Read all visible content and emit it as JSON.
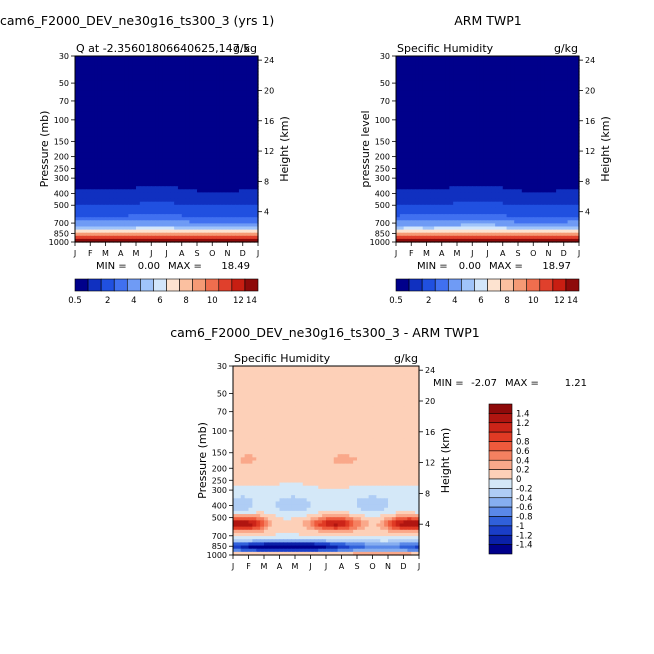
{
  "chart_data": [
    {
      "type": "heatmap",
      "title": "cam6_F2000_DEV_ne30g16_ts300_3 (yrs 1)",
      "subtitle_left": "Q at -2.35601806640625,147.5",
      "subtitle_right": "g/kg",
      "ylabel": "Pressure (mb)",
      "ylabel_right": "Height (km)",
      "months": [
        "J",
        "F",
        "M",
        "A",
        "M",
        "J",
        "J",
        "A",
        "S",
        "O",
        "N",
        "D",
        "J"
      ],
      "pressure_ticks": [
        "30",
        "50",
        "70",
        "100",
        "150",
        "200",
        "250",
        "300",
        "400",
        "500",
        "700",
        "850",
        "1000"
      ],
      "height_ticks": [
        "24",
        "20",
        "16",
        "12",
        "8",
        "4"
      ],
      "stats": {
        "min_label": "MIN =",
        "min": "0.00",
        "max_label": "MAX =",
        "max": "18.49"
      },
      "colorbar": {
        "labels": [
          "0.5",
          "2",
          "4",
          "6",
          "8",
          "10",
          "12",
          "14"
        ],
        "colors": [
          "#00008B",
          "#1030C0",
          "#2050E0",
          "#4070F0",
          "#6F9BF5",
          "#A0C4FA",
          "#D2E6FB",
          "#FDE3D0",
          "#FBC0A0",
          "#F59A75",
          "#EF6E4E",
          "#E0402C",
          "#C81E12",
          "#8E0A0A"
        ]
      }
    },
    {
      "type": "heatmap",
      "title": "ARM TWP1",
      "subtitle_left": "Specific Humidity",
      "subtitle_right": "g/kg",
      "ylabel": "pressure level",
      "ylabel_right": "Height (km)",
      "months": [
        "J",
        "F",
        "M",
        "A",
        "M",
        "J",
        "J",
        "A",
        "S",
        "O",
        "N",
        "D",
        "J"
      ],
      "pressure_ticks": [
        "30",
        "50",
        "70",
        "100",
        "150",
        "200",
        "250",
        "300",
        "400",
        "500",
        "700",
        "850",
        "1000"
      ],
      "height_ticks": [
        "24",
        "20",
        "16",
        "12",
        "8",
        "4"
      ],
      "stats": {
        "min_label": "MIN =",
        "min": "0.00",
        "max_label": "MAX =",
        "max": "18.97"
      },
      "colorbar": {
        "labels": [
          "0.5",
          "2",
          "4",
          "6",
          "8",
          "10",
          "12",
          "14"
        ],
        "colors": [
          "#00008B",
          "#1030C0",
          "#2050E0",
          "#4070F0",
          "#6F9BF5",
          "#A0C4FA",
          "#D2E6FB",
          "#FDE3D0",
          "#FBC0A0",
          "#F59A75",
          "#EF6E4E",
          "#E0402C",
          "#C81E12",
          "#8E0A0A"
        ]
      }
    },
    {
      "type": "heatmap",
      "title": "cam6_F2000_DEV_ne30g16_ts300_3 - ARM TWP1",
      "subtitle_left": "Specific Humidity",
      "subtitle_right": "g/kg",
      "ylabel": "Pressure (mb)",
      "ylabel_right": "Height (km)",
      "months": [
        "J",
        "F",
        "M",
        "A",
        "M",
        "J",
        "J",
        "A",
        "S",
        "O",
        "N",
        "D",
        "J"
      ],
      "pressure_ticks": [
        "30",
        "50",
        "70",
        "100",
        "150",
        "200",
        "250",
        "300",
        "400",
        "500",
        "700",
        "850",
        "1000"
      ],
      "height_ticks": [
        "24",
        "20",
        "16",
        "12",
        "8",
        "4"
      ],
      "stats": {
        "min_label": "MIN =",
        "min": "-2.07",
        "max_label": "MAX =",
        "max": "1.21"
      },
      "colorbar": {
        "labels": [
          "1.4",
          "1.2",
          "1",
          "0.8",
          "0.6",
          "0.4",
          "0.2",
          "0",
          "-0.2",
          "-0.4",
          "-0.6",
          "-0.8",
          "-1",
          "-1.2",
          "-1.4"
        ],
        "colors": [
          "#8E0A0A",
          "#B01510",
          "#CC2418",
          "#E03A24",
          "#EE5A3C",
          "#F58060",
          "#FAA88A",
          "#FDD0B8",
          "#D4E8F8",
          "#AFCDF5",
          "#86AEF0",
          "#5A88E8",
          "#3060DA",
          "#1A3EC8",
          "#0A20A8",
          "#00008B"
        ]
      }
    }
  ]
}
